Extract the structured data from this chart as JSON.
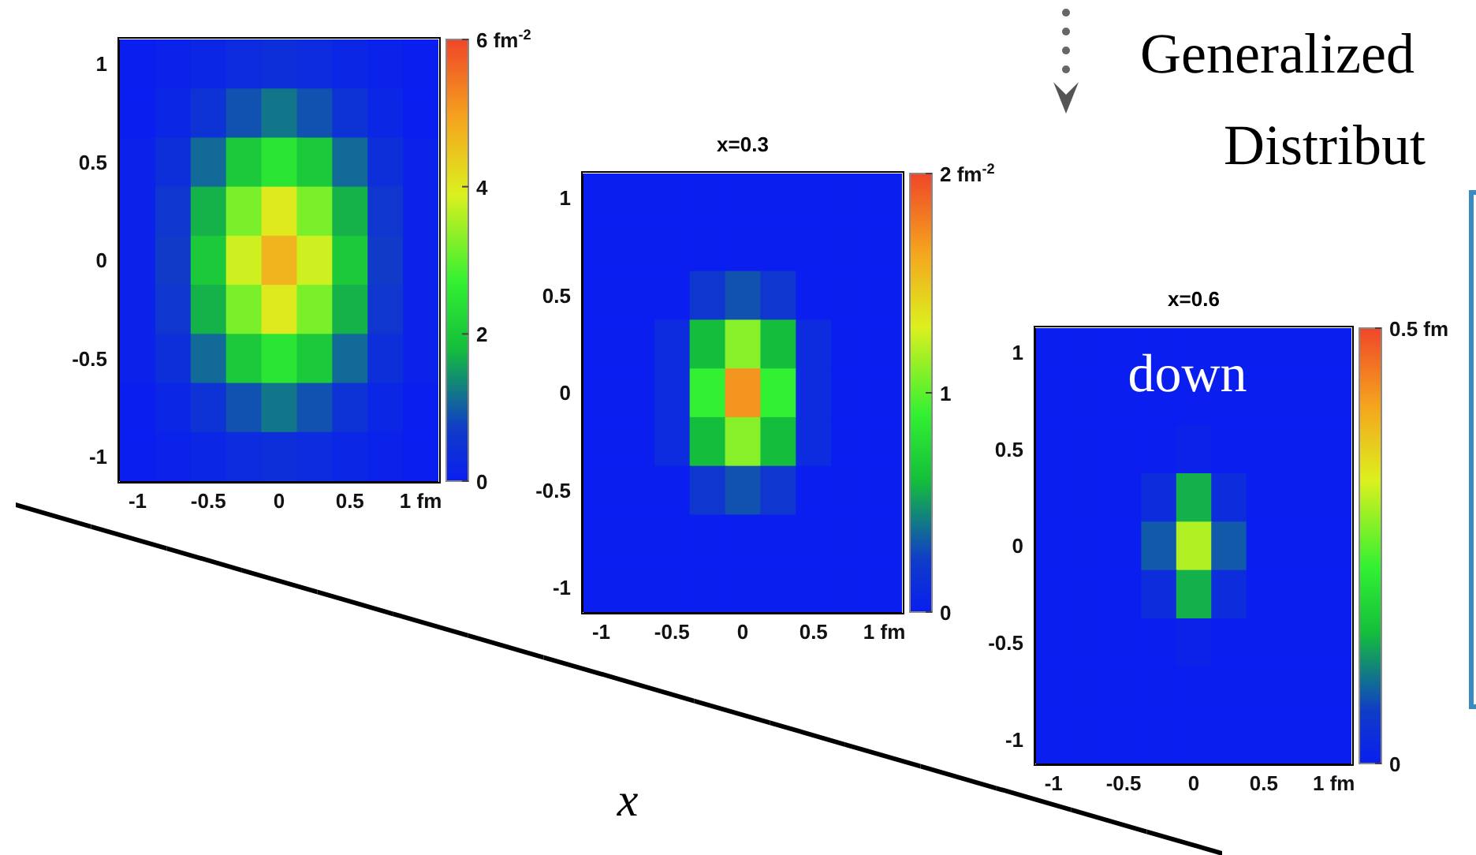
{
  "chart_data": [
    {
      "type": "heatmap",
      "categories": [
        "-1",
        null,
        "-0.5",
        null,
        "0",
        null,
        "0.5",
        null,
        "1 fm"
      ],
      "y_categories": [
        "1",
        null,
        "0.5",
        null,
        "0",
        null,
        "-0.5",
        null,
        "-1"
      ],
      "clim": [
        0,
        6
      ],
      "cticks": [
        0,
        2,
        4,
        {
          "value": 6,
          "label": "6 fm$^{-2}$"
        }
      ],
      "cells": [
        [
          0.0,
          0.1,
          0.2,
          0.3,
          0.4,
          0.3,
          0.2,
          0.1,
          0.0
        ],
        [
          0.0,
          0.2,
          0.5,
          0.9,
          1.2,
          0.9,
          0.5,
          0.2,
          0.0
        ],
        [
          0.1,
          0.4,
          1.1,
          2.0,
          2.5,
          2.0,
          1.1,
          0.4,
          0.1
        ],
        [
          0.1,
          0.6,
          1.7,
          3.2,
          4.0,
          3.2,
          1.7,
          0.6,
          0.1
        ],
        [
          0.1,
          0.7,
          2.0,
          3.8,
          4.7,
          3.8,
          2.0,
          0.7,
          0.1
        ],
        [
          0.1,
          0.6,
          1.7,
          3.2,
          4.0,
          3.2,
          1.7,
          0.6,
          0.1
        ],
        [
          0.1,
          0.4,
          1.1,
          2.0,
          2.5,
          2.0,
          1.1,
          0.4,
          0.1
        ],
        [
          0.0,
          0.2,
          0.5,
          0.9,
          1.2,
          0.9,
          0.5,
          0.2,
          0.0
        ],
        [
          0.0,
          0.1,
          0.2,
          0.3,
          0.4,
          0.3,
          0.2,
          0.1,
          0.0
        ]
      ]
    },
    {
      "type": "heatmap",
      "title": "x=0.3",
      "categories": [
        "-1",
        null,
        "-0.5",
        null,
        "0",
        null,
        "0.5",
        null,
        "1 fm"
      ],
      "y_categories": [
        "1",
        null,
        "0.5",
        null,
        "0",
        null,
        "-0.5",
        null,
        "-1"
      ],
      "clim": [
        0,
        2
      ],
      "cticks": [
        0,
        1,
        {
          "value": 2,
          "label": "2 fm$^{-2}$"
        }
      ],
      "annotations": [
        "x"
      ],
      "cells": [
        [
          0,
          0,
          0,
          0,
          0,
          0,
          0,
          0,
          0
        ],
        [
          0,
          0,
          0,
          0,
          0,
          0,
          0,
          0,
          0
        ],
        [
          0,
          0,
          0,
          0.2,
          0.3,
          0.2,
          0,
          0,
          0
        ],
        [
          0,
          0,
          0.1,
          0.6,
          1.1,
          0.6,
          0.1,
          0,
          0
        ],
        [
          0,
          0,
          0.1,
          0.9,
          1.7,
          0.9,
          0.1,
          0,
          0
        ],
        [
          0,
          0,
          0.1,
          0.6,
          1.1,
          0.6,
          0.1,
          0,
          0
        ],
        [
          0,
          0,
          0,
          0.2,
          0.3,
          0.2,
          0,
          0,
          0
        ],
        [
          0,
          0,
          0,
          0,
          0,
          0,
          0,
          0,
          0
        ],
        [
          0,
          0,
          0,
          0,
          0,
          0,
          0,
          0,
          0
        ]
      ]
    },
    {
      "type": "heatmap",
      "title": "x=0.6",
      "categories": [
        "-1",
        null,
        "-0.5",
        null,
        "0",
        null,
        "0.5",
        null,
        "1 fm"
      ],
      "y_categories": [
        "1",
        null,
        "0.5",
        null,
        "0",
        null,
        "-0.5",
        null,
        "-1"
      ],
      "clim": [
        0,
        0.5
      ],
      "cticks": [
        0,
        {
          "value": 0.5,
          "label": "0.5 fm"
        }
      ],
      "annotations": [
        "down",
        "Generalized",
        "Distribut"
      ],
      "cells": [
        [
          0,
          0,
          0,
          0,
          0,
          0,
          0,
          0,
          0
        ],
        [
          0,
          0,
          0,
          0,
          0,
          0,
          0,
          0,
          0
        ],
        [
          0,
          0,
          0,
          0,
          0.01,
          0,
          0,
          0,
          0
        ],
        [
          0,
          0,
          0,
          0.03,
          0.14,
          0.03,
          0,
          0,
          0
        ],
        [
          0,
          0,
          0,
          0.08,
          0.3,
          0.08,
          0,
          0,
          0
        ],
        [
          0,
          0,
          0,
          0.03,
          0.14,
          0.03,
          0,
          0,
          0
        ],
        [
          0,
          0,
          0,
          0,
          0.01,
          0,
          0,
          0,
          0
        ],
        [
          0,
          0,
          0,
          0,
          0,
          0,
          0,
          0,
          0
        ],
        [
          0,
          0,
          0,
          0,
          0,
          0,
          0,
          0,
          0
        ]
      ]
    }
  ]
}
